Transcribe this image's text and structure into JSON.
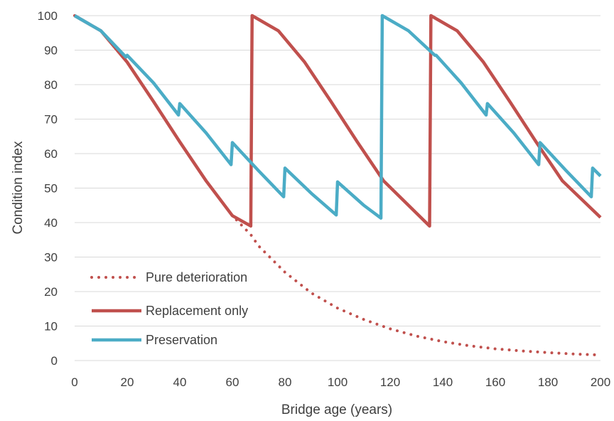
{
  "chart_data": {
    "type": "line",
    "title": "",
    "xlabel": "Bridge age (years)",
    "ylabel": "Condition index",
    "xlim": [
      0,
      200
    ],
    "ylim": [
      0,
      100
    ],
    "x_ticks": [
      "0",
      "20",
      "40",
      "60",
      "80",
      "100",
      "120",
      "140",
      "160",
      "180",
      "200"
    ],
    "y_ticks": [
      "0",
      "10",
      "20",
      "30",
      "40",
      "50",
      "60",
      "70",
      "80",
      "90",
      "100"
    ],
    "grid": "horizontal",
    "legend_position": "bottom-left",
    "series": [
      {
        "name": "Pure deterioration",
        "color": "#C0504D",
        "style": "dotted",
        "x": [
          0,
          10,
          20,
          30,
          40,
          50,
          60,
          67,
          70,
          80,
          90,
          100,
          110,
          120,
          130,
          140,
          150,
          160,
          170,
          180,
          190,
          200
        ],
        "y": [
          100,
          95.6,
          86.5,
          75.1,
          63.4,
          52.1,
          42,
          36.5,
          33.2,
          25.6,
          19.6,
          15.2,
          11.9,
          9.2,
          7.1,
          5.5,
          4.3,
          3.4,
          2.8,
          2.3,
          1.9,
          1.6
        ]
      },
      {
        "name": "Replacement only",
        "color": "#C0504D",
        "style": "solid",
        "x": [
          0,
          10,
          20,
          30,
          40,
          50,
          60,
          67,
          67.5,
          77.5,
          87.5,
          97.5,
          107.5,
          117.5,
          135,
          135.5,
          145.5,
          155.5,
          165.5,
          175.5,
          185.5,
          200
        ],
        "y": [
          100,
          95.6,
          86.5,
          75.1,
          63.4,
          52.1,
          42,
          39,
          100,
          95.6,
          86.5,
          75.1,
          63.4,
          52.1,
          39,
          100,
          95.6,
          86.5,
          75.1,
          63.4,
          52.1,
          41.5
        ]
      },
      {
        "name": "Preservation",
        "color": "#4BACC6",
        "style": "solid",
        "x": [
          0,
          10,
          19.5,
          20,
          30,
          39.5,
          40,
          50,
          59.5,
          60,
          70,
          79.5,
          80,
          90,
          99.5,
          100,
          110,
          116.5,
          117,
          127,
          137,
          137.5,
          147,
          156.5,
          157,
          167,
          176.5,
          177,
          187,
          196.5,
          197,
          200
        ],
        "y": [
          100,
          95.6,
          88,
          88.5,
          80.5,
          71.2,
          74.5,
          66,
          56.8,
          63.2,
          55,
          47.5,
          55.8,
          48.5,
          42.2,
          51.8,
          45,
          41.3,
          100,
          95.6,
          88.5,
          88.5,
          80.5,
          71.2,
          74.5,
          66,
          56.8,
          63.2,
          55,
          47.5,
          55.8,
          53.5
        ]
      }
    ]
  }
}
